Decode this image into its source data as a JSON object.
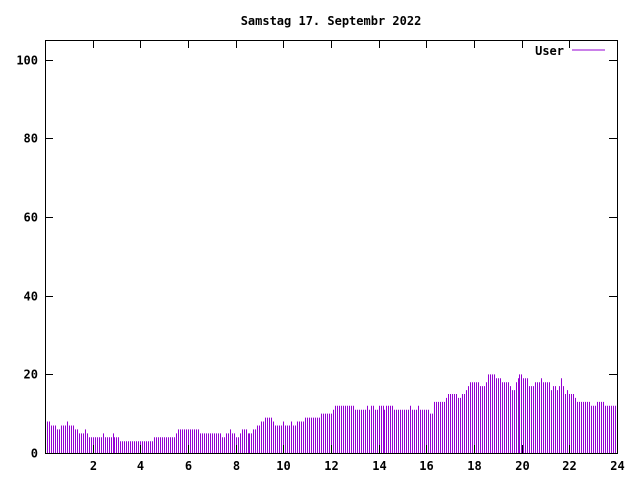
{
  "chart_data": {
    "type": "bar",
    "title": "Samstag 17. Septembr 2022",
    "xlabel": "",
    "ylabel": "",
    "xlim": [
      0,
      24
    ],
    "ylim": [
      0,
      105
    ],
    "x_start": 0.0833,
    "x_step": 0.0833,
    "xticks": [
      2,
      4,
      6,
      8,
      10,
      12,
      14,
      16,
      18,
      20,
      22,
      24
    ],
    "yticks": [
      0,
      20,
      40,
      60,
      80,
      100
    ],
    "grid": false,
    "legend_position": "top-right",
    "series": [
      {
        "name": "User",
        "color": "#9400d3",
        "values": [
          8,
          8,
          7,
          7,
          7,
          6,
          6,
          7,
          7,
          7,
          8,
          7,
          7,
          7,
          6,
          6,
          5,
          5,
          5,
          6,
          5,
          4,
          4,
          4,
          4,
          4,
          4,
          4,
          5,
          4,
          4,
          4,
          4,
          5,
          4,
          4,
          4,
          3,
          3,
          3,
          3,
          3,
          3,
          3,
          3,
          3,
          3,
          3,
          3,
          3,
          3,
          3,
          3,
          3,
          4,
          4,
          4,
          4,
          4,
          4,
          4,
          4,
          4,
          4,
          4,
          5,
          6,
          6,
          6,
          6,
          6,
          6,
          6,
          6,
          6,
          6,
          6,
          5,
          5,
          5,
          5,
          5,
          5,
          5,
          5,
          5,
          5,
          5,
          4,
          4,
          5,
          5,
          6,
          5,
          5,
          4,
          4,
          5,
          6,
          6,
          6,
          5,
          5,
          5,
          6,
          6,
          7,
          7,
          8,
          8,
          9,
          9,
          9,
          9,
          8,
          7,
          7,
          7,
          7,
          8,
          7,
          7,
          7,
          8,
          7,
          7,
          8,
          8,
          8,
          8,
          9,
          9,
          9,
          9,
          9,
          9,
          9,
          9,
          10,
          10,
          10,
          10,
          10,
          10,
          11,
          12,
          12,
          12,
          12,
          12,
          12,
          12,
          12,
          12,
          12,
          11,
          11,
          11,
          11,
          11,
          11,
          12,
          11,
          12,
          12,
          11,
          11,
          12,
          12,
          12,
          11,
          12,
          12,
          12,
          12,
          11,
          11,
          11,
          11,
          11,
          11,
          11,
          11,
          12,
          11,
          11,
          11,
          12,
          11,
          11,
          11,
          11,
          11,
          10,
          10,
          13,
          13,
          13,
          13,
          13,
          13,
          14,
          15,
          15,
          15,
          15,
          15,
          14,
          14,
          15,
          15,
          16,
          17,
          18,
          18,
          18,
          18,
          18,
          17,
          17,
          17,
          18,
          20,
          20,
          20,
          20,
          19,
          19,
          19,
          18,
          18,
          18,
          18,
          17,
          16,
          16,
          18,
          19,
          20,
          20,
          19,
          19,
          19,
          17,
          17,
          17,
          18,
          18,
          18,
          19,
          18,
          18,
          18,
          18,
          16,
          17,
          17,
          16,
          17,
          19,
          17,
          15,
          16,
          15,
          15,
          15,
          14,
          13,
          13,
          13,
          13,
          13,
          13,
          13,
          12,
          12,
          12,
          13,
          13,
          13,
          13,
          12,
          12,
          12,
          12,
          12,
          12
        ]
      }
    ]
  }
}
